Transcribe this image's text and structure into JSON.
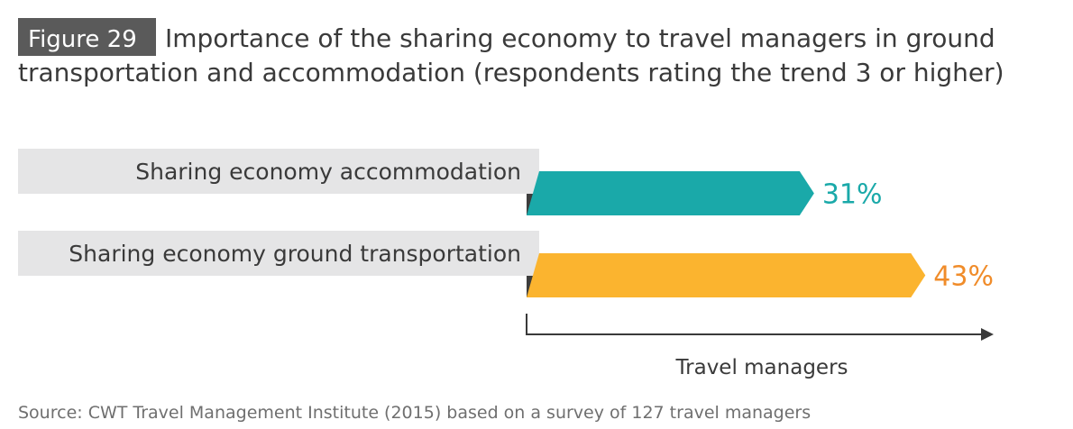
{
  "figure_label": "Figure 29",
  "title_line1": "Importance of the sharing economy to travel managers in ground",
  "title_line2": "transportation and accommodation (respondents rating the trend 3 or higher)",
  "source": "Source: CWT Travel Management Institute (2015) based on a survey of 127 travel managers",
  "colors": {
    "figure_tag_bg": "#5a5a5a",
    "label_bg": "#e5e5e6",
    "accommodation": "#1aa9a9",
    "ground_transportation": "#fbb42f",
    "ground_transportation_value": "#f08c2a",
    "text": "#3a3a3a",
    "axis": "#3a3a3a"
  },
  "chart_data": {
    "type": "bar",
    "orientation": "horizontal",
    "categories": [
      "Sharing economy accommodation",
      "Sharing economy ground transportation"
    ],
    "values": [
      31,
      43
    ],
    "value_labels": [
      "31%",
      "43%"
    ],
    "xlabel": "Travel managers",
    "ylabel": "",
    "xlim": [
      0,
      56
    ],
    "grid": false,
    "legend": "none"
  }
}
